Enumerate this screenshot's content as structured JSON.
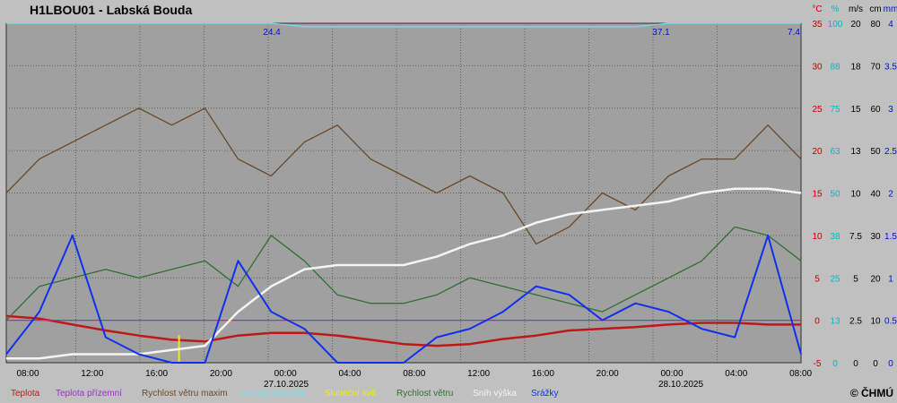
{
  "title": "H1LBOU01 - Labská Bouda",
  "copyright": "© ČHMÚ",
  "colors": {
    "background": "#c0c0c0",
    "plot_background": "#a0a0a0",
    "grid": "#606060",
    "temperature": "#c01818",
    "ground_temperature": "#9a30d0",
    "wind_gust": "#6a4a28",
    "humidity": "#70e0e8",
    "sunshine": "#f0f000",
    "wind_speed": "#307030",
    "snow": "#f4f4f4",
    "precipitation": "#1030f0",
    "axis_blue": "#0010d0",
    "axis_red": "#c00000",
    "axis_cyan": "#00b8c8"
  },
  "chart_data": {
    "type": "line",
    "grid": true,
    "x_labels": [
      "08:00",
      "12:00",
      "16:00",
      "20:00",
      "00:00",
      "04:00",
      "08:00",
      "12:00",
      "16:00",
      "20:00",
      "00:00",
      "04:00",
      "08:00"
    ],
    "date_labels": [
      "27.10.2025",
      "28.10.2025"
    ],
    "axes": [
      {
        "unit": "°C",
        "ticks": [
          "35",
          "30",
          "25",
          "20",
          "15",
          "10",
          "5",
          "0",
          "-5"
        ],
        "color": "#c00000"
      },
      {
        "unit": "%",
        "ticks": [
          "100",
          "88",
          "75",
          "63",
          "50",
          "38",
          "25",
          "13",
          "0"
        ],
        "color": "#00b8c8"
      },
      {
        "unit": "m/s",
        "ticks": [
          "20",
          "18",
          "15",
          "13",
          "10",
          "7.5",
          "5",
          "2.5",
          "0"
        ],
        "color": "#000000"
      },
      {
        "unit": "cm",
        "ticks": [
          "80",
          "70",
          "60",
          "50",
          "40",
          "30",
          "20",
          "10",
          "0"
        ],
        "color": "#000000"
      },
      {
        "unit": "mm",
        "ticks": [
          "4",
          "3.5",
          "3",
          "2.5",
          "2",
          "1.5",
          "1",
          "0.5",
          "0"
        ],
        "color": "#0010d0"
      }
    ],
    "annotations": [
      "24.4",
      "37.1",
      "7.4"
    ],
    "x_hours": [
      0,
      2,
      4,
      6,
      8,
      10,
      12,
      14,
      16,
      18,
      20,
      22,
      24,
      26,
      28,
      30,
      32,
      34,
      36,
      38,
      40,
      42,
      44,
      46,
      48
    ],
    "series": [
      {
        "name": "Teplota",
        "unit": "°C",
        "values": [
          0.5,
          0.2,
          -0.5,
          -1.2,
          -1.8,
          -2.3,
          -2.5,
          -1.8,
          -1.5,
          -1.5,
          -1.8,
          -2.3,
          -2.8,
          -3.0,
          -2.8,
          -2.2,
          -1.8,
          -1.2,
          -1.0,
          -0.8,
          -0.5,
          -0.3,
          -0.3,
          -0.5,
          -0.5
        ]
      },
      {
        "name": "Teplota přízemní",
        "unit": "°C",
        "values": [
          0,
          0,
          0,
          0,
          0,
          0,
          0,
          0,
          0,
          0,
          0,
          0,
          0,
          0,
          0,
          0,
          0,
          0,
          0,
          0,
          0,
          0,
          0,
          0,
          0
        ]
      },
      {
        "name": "Rychlost větru maxim",
        "unit": "m/s",
        "values": [
          10,
          12,
          13,
          14,
          15,
          14,
          15,
          12,
          11,
          13,
          14,
          12,
          11,
          10,
          11,
          10,
          7,
          8,
          10,
          9,
          11,
          12,
          12,
          14,
          12
        ]
      },
      {
        "name": "Vlhkost vzduchu",
        "unit": "%",
        "values": [
          100,
          100,
          100,
          100,
          100,
          100,
          100,
          100,
          100,
          99,
          99,
          99,
          99,
          99,
          99,
          99,
          99,
          99,
          99,
          99,
          100,
          100,
          100,
          100,
          100
        ]
      },
      {
        "name": "Sluneční svit",
        "unit": "",
        "values": [
          0,
          0,
          0,
          0,
          0,
          0.65,
          0,
          0,
          0,
          0,
          0,
          0,
          0,
          0,
          0,
          0,
          0,
          0,
          0,
          0,
          0,
          0,
          0,
          0,
          0
        ]
      },
      {
        "name": "Rychlost větru",
        "unit": "m/s",
        "values": [
          2.5,
          4.5,
          5.0,
          5.5,
          5.0,
          5.5,
          6.0,
          4.5,
          7.5,
          6.0,
          4.0,
          3.5,
          3.5,
          4.0,
          5.0,
          4.5,
          4.0,
          3.5,
          3.0,
          4.0,
          5.0,
          6.0,
          8.0,
          7.5,
          6.0
        ]
      },
      {
        "name": "Sníh výška",
        "unit": "cm",
        "values": [
          1,
          1,
          2,
          2,
          2,
          3,
          4,
          12,
          18,
          22,
          23,
          23,
          23,
          25,
          28,
          30,
          33,
          35,
          36,
          37,
          38,
          40,
          41,
          41,
          40
        ]
      },
      {
        "name": "Srážky",
        "unit": "mm",
        "values": [
          0.1,
          0.6,
          1.5,
          0.3,
          0.1,
          0.0,
          0.0,
          1.2,
          0.6,
          0.4,
          0.0,
          0.0,
          0.0,
          0.3,
          0.4,
          0.6,
          0.9,
          0.8,
          0.5,
          0.7,
          0.6,
          0.4,
          0.3,
          1.5,
          0.1
        ]
      }
    ],
    "legend_position": "bottom"
  }
}
